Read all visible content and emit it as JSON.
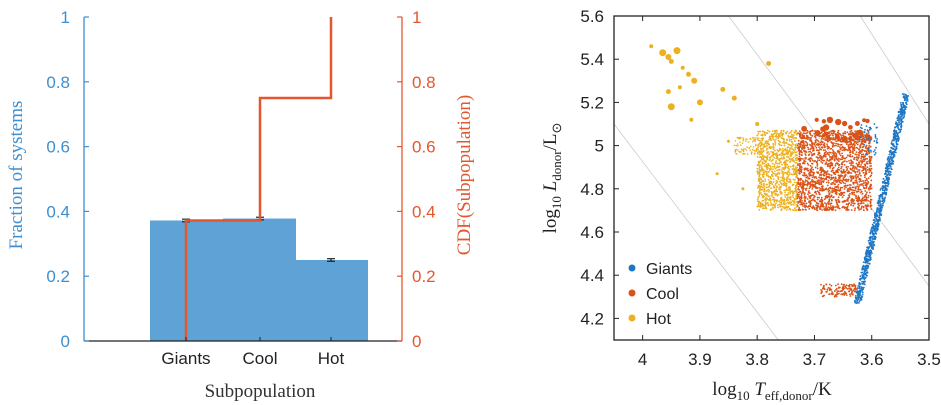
{
  "chart_data": [
    {
      "type": "bar",
      "categories": [
        "Giants",
        "Cool",
        "Hot"
      ],
      "values": [
        0.372,
        0.378,
        0.25
      ],
      "errors": [
        0.004,
        0.004,
        0.004
      ],
      "cdf": [
        0.372,
        0.75,
        1.0
      ],
      "xlabel": "Subpopulation",
      "ylabel_left": "Fraction of systems",
      "ylabel_right": "CDF(Subpopulation)",
      "ylim": [
        0,
        1
      ],
      "yticks": [
        "0",
        "0.2",
        "0.4",
        "0.6",
        "0.8",
        "1"
      ],
      "colors": {
        "bar": "#5fa3d6",
        "cdf": "#e4572e",
        "left_axis": "#3d8fd1",
        "right_axis": "#e4572e",
        "errorbar": "#222222"
      }
    },
    {
      "type": "scatter",
      "xlabel": "log₁₀ Teff,donor/K",
      "ylabel": "log₁₀ Ldonor/L⊙",
      "xlim": [
        4.05,
        3.5
      ],
      "ylim": [
        4.1,
        5.6
      ],
      "x_reversed": true,
      "xticks": [
        "4",
        "3.9",
        "3.8",
        "3.7",
        "3.6",
        "3.5"
      ],
      "yticks": [
        "4.2",
        "4.4",
        "4.6",
        "4.8",
        "5",
        "5.2",
        "5.4",
        "5.6"
      ],
      "legend_position": "bottom-left",
      "series": [
        {
          "name": "Giants",
          "color": "#1f77c4",
          "region": "narrow diagonal band from (3.625, 4.3) to (3.54, 5.24), plus sparse points near logL 5.0–5.1"
        },
        {
          "name": "Cool",
          "color": "#d95319",
          "region": "dense block logT 3.60–3.73, logL 4.70–5.07; thin strip logT 3.63–3.69 at logL 4.30–4.36; large dots along top edge"
        },
        {
          "name": "Hot",
          "color": "#edb120",
          "region": "dense block logT 3.73–3.80, logL 4.70–5.07; scattered large dots logT 3.84–4.00, logL 5.1–5.47"
        }
      ]
    }
  ]
}
